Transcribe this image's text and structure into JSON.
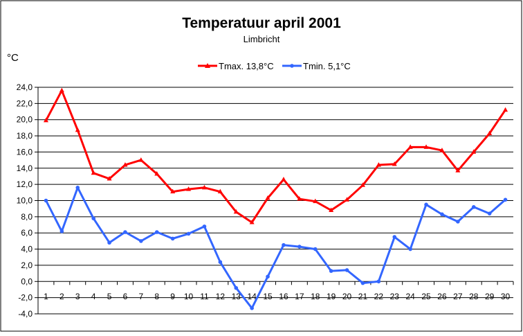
{
  "chart_data": {
    "type": "line",
    "title": "Temperatuur april 2001",
    "subtitle": "Limbricht",
    "ylabel": "°C",
    "xlabel": "",
    "categories": [
      "1",
      "2",
      "3",
      "4",
      "5",
      "6",
      "7",
      "8",
      "9",
      "10",
      "11",
      "12",
      "13",
      "14",
      "15",
      "16",
      "17",
      "18",
      "19",
      "20",
      "21",
      "22",
      "23",
      "24",
      "25",
      "26",
      "27",
      "28",
      "29",
      "30"
    ],
    "ylim": [
      -4,
      24
    ],
    "ytick_step": 2,
    "ytick_labels": [
      "24,0",
      "22,0",
      "20,0",
      "18,0",
      "16,0",
      "14,0",
      "12,0",
      "10,0",
      "8,0",
      "6,0",
      "4,0",
      "2,0",
      "0,0",
      "-2,0",
      "-4,0"
    ],
    "grid": true,
    "legend_position": "top-center",
    "series": [
      {
        "name": "Tmax. 13,8°C",
        "color": "#ff0000",
        "marker": "triangle",
        "values": [
          19.9,
          23.6,
          18.7,
          13.4,
          12.7,
          14.4,
          15.0,
          13.3,
          11.1,
          11.4,
          11.6,
          11.1,
          8.6,
          7.3,
          10.3,
          12.6,
          10.2,
          9.9,
          8.8,
          10.1,
          11.9,
          14.4,
          14.5,
          16.6,
          16.6,
          16.2,
          13.7,
          16.0,
          18.3,
          21.2
        ]
      },
      {
        "name": "Tmin. 5,1°C",
        "color": "#3366ff",
        "marker": "circle",
        "values": [
          10.0,
          6.2,
          11.6,
          7.8,
          4.8,
          6.1,
          5.0,
          6.1,
          5.3,
          5.9,
          6.8,
          2.4,
          -0.8,
          -3.3,
          0.6,
          4.5,
          4.3,
          4.0,
          1.3,
          1.4,
          -0.2,
          0.0,
          5.5,
          4.0,
          9.5,
          8.3,
          7.4,
          9.2,
          8.4,
          10.1
        ]
      }
    ]
  }
}
